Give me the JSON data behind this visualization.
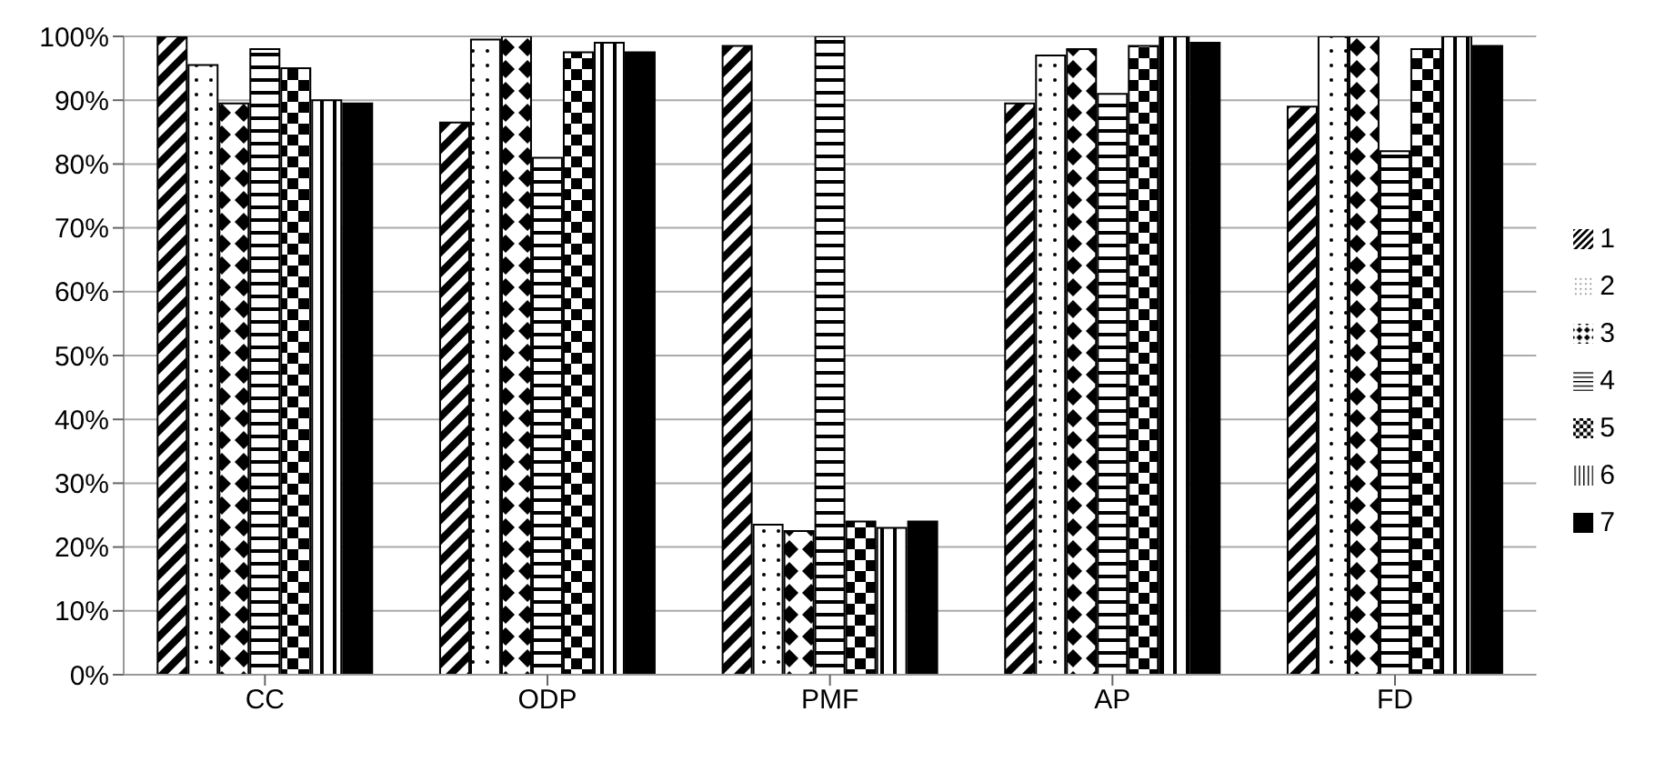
{
  "chart_data": {
    "type": "bar",
    "categories": [
      "CC",
      "ODP",
      "PMF",
      "AP",
      "FD"
    ],
    "series": [
      {
        "name": "1",
        "color": "#000000",
        "values": [
          100,
          86.5,
          98.5,
          89.5,
          89
        ]
      },
      {
        "name": "2",
        "color": "#000000",
        "values": [
          95.5,
          99.5,
          23.5,
          97,
          100
        ]
      },
      {
        "name": "3",
        "color": "#000000",
        "values": [
          89.5,
          100,
          22.5,
          98,
          100
        ]
      },
      {
        "name": "4",
        "color": "#000000",
        "values": [
          98,
          81,
          100,
          91,
          82
        ]
      },
      {
        "name": "5",
        "color": "#000000",
        "values": [
          95,
          97.5,
          24,
          98.5,
          98
        ]
      },
      {
        "name": "6",
        "color": "#000000",
        "values": [
          90,
          99,
          23,
          100,
          100
        ]
      },
      {
        "name": "7",
        "color": "#000000",
        "values": [
          89.5,
          97.5,
          24,
          99,
          98.5
        ]
      }
    ],
    "ylim": [
      0,
      100
    ],
    "yticks": [
      {
        "value": 0,
        "label": "0%"
      },
      {
        "value": 10,
        "label": "10%"
      },
      {
        "value": 20,
        "label": "20%"
      },
      {
        "value": 30,
        "label": "30%"
      },
      {
        "value": 40,
        "label": "40%"
      },
      {
        "value": 50,
        "label": "50%"
      },
      {
        "value": 60,
        "label": "60%"
      },
      {
        "value": 70,
        "label": "70%"
      },
      {
        "value": 80,
        "label": "80%"
      },
      {
        "value": 90,
        "label": "90%"
      },
      {
        "value": 100,
        "label": "100%"
      }
    ],
    "grid": "y",
    "legend": "right"
  }
}
